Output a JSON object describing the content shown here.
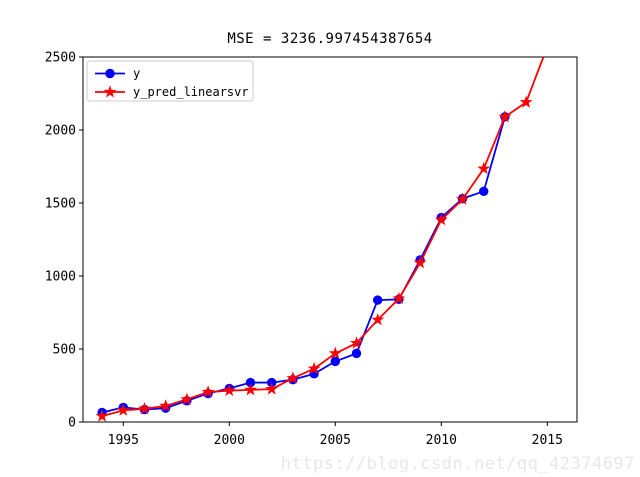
{
  "figure": {
    "title": "MSE = 3236.997454387654",
    "watermark": "https://blog.csdn.net/qq_42374697"
  },
  "chart_data": {
    "type": "line",
    "title": "MSE = 3236.997454387654",
    "xlabel": "",
    "ylabel": "",
    "xlim": [
      1993.1,
      2016.4
    ],
    "ylim": [
      0,
      2500
    ],
    "xticks": [
      1995,
      2000,
      2005,
      2010,
      2015
    ],
    "yticks": [
      0,
      500,
      1000,
      1500,
      2000,
      2500
    ],
    "grid": false,
    "legend": {
      "position": "upper-left",
      "entries": [
        "y",
        "y_pred_linearsvr"
      ]
    },
    "series": [
      {
        "name": "y",
        "color": "#0000ff",
        "marker": "circle",
        "x": [
          1994,
          1995,
          1996,
          1997,
          1998,
          1999,
          2000,
          2001,
          2002,
          2003,
          2004,
          2005,
          2006,
          2007,
          2008,
          2009,
          2010,
          2011,
          2012,
          2013
        ],
        "values": [
          65,
          100,
          85,
          95,
          145,
          195,
          230,
          270,
          270,
          290,
          330,
          415,
          470,
          835,
          840,
          1110,
          1400,
          1530,
          1580,
          2090
        ]
      },
      {
        "name": "y_pred_linearsvr",
        "color": "#ff0000",
        "marker": "star",
        "x": [
          1994,
          1995,
          1996,
          1997,
          1998,
          1999,
          2000,
          2001,
          2002,
          2003,
          2004,
          2005,
          2006,
          2007,
          2008,
          2009,
          2010,
          2011,
          2012,
          2013,
          2014,
          2015
        ],
        "values": [
          40,
          80,
          90,
          110,
          155,
          205,
          215,
          220,
          225,
          300,
          365,
          470,
          540,
          700,
          845,
          1090,
          1385,
          1525,
          1735,
          2090,
          2190,
          2570
        ]
      }
    ],
    "colors": {
      "series_y": "#0000ff",
      "series_y_pred": "#ff0000",
      "spine": "#000000",
      "legend_border": "#cccccc",
      "watermark": "#e7e7ea"
    }
  }
}
